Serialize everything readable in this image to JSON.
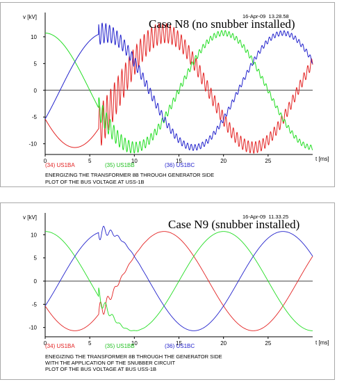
{
  "colors": {
    "red": "#e32222",
    "green": "#22dd22",
    "blue": "#2222cc",
    "axis": "#000000",
    "frame": "#a9a9a9"
  },
  "chart_data": [
    {
      "type": "line",
      "title": "Case N8 (no snubber installed)",
      "timestamp": "16-Apr-09  13.28.58",
      "ylabel": "v [kV]",
      "xlabel": "t [ms]",
      "xlim": [
        0,
        30
      ],
      "ylim": [
        -12,
        13.5
      ],
      "xticks": [
        0,
        5,
        10,
        15,
        20,
        25
      ],
      "yticks": [
        10,
        5,
        0,
        -5,
        -10
      ],
      "grid": false,
      "amplitude_kv": 10.7,
      "frequency_hz": 50,
      "energize_ms": 6.0,
      "series": [
        {
          "name": "(34) US1BA",
          "color": "red",
          "phase_deg": -150
        },
        {
          "name": "(35) US1BB",
          "color": "green",
          "phase_deg": 90
        },
        {
          "name": "(36) US1BC",
          "color": "blue",
          "phase_deg": -30
        }
      ],
      "notes": [
        "ENERGIZING THE TRANSFORMER 8B THROUGH GENERATOR SIDE",
        "PLOT OF THE BUS VOLTAGE AT USS-1B"
      ]
    },
    {
      "type": "line",
      "title": "Case N9 (snubber installed)",
      "timestamp": "16-Apr-09  11.33.25",
      "ylabel": "v [kV]",
      "xlabel": "t [ms]",
      "xlim": [
        0,
        30
      ],
      "ylim": [
        -12,
        13.5
      ],
      "xticks": [
        0,
        5,
        10,
        15,
        20,
        25
      ],
      "yticks": [
        10,
        5,
        0,
        -5,
        -10
      ],
      "grid": false,
      "amplitude_kv": 10.7,
      "frequency_hz": 50,
      "energize_ms": 6.0,
      "series": [
        {
          "name": "(34) US1BA",
          "color": "red",
          "phase_deg": -150
        },
        {
          "name": "(35) US1BB",
          "color": "green",
          "phase_deg": 90
        },
        {
          "name": "(36) US1BC",
          "color": "blue",
          "phase_deg": -30
        }
      ],
      "notes": [
        "ENEGIZING THE TRANSFORMER 8B THROUGH THE GENERATOR SIDE",
        "WITH THE APPLICATION OF THE SNUBBER CIRCUIT",
        "PLOT OF THE BUS VOLTAGE AT BUS USS-1B"
      ]
    }
  ]
}
